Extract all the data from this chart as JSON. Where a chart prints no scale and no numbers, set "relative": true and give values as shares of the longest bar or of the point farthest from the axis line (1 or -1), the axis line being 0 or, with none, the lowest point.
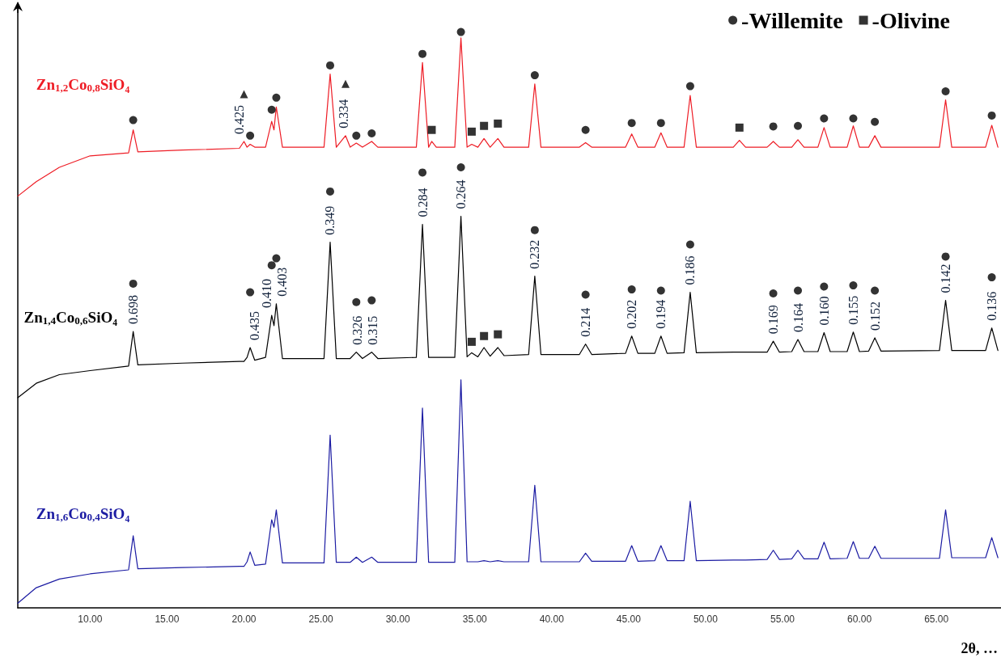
{
  "chart_data": {
    "type": "line",
    "relative": true,
    "marker": "none",
    "legend": "top right",
    "xlabel": "2θ, …",
    "xlim": [
      5.3,
      69.2
    ],
    "xticks": [
      {
        "value": 10,
        "label": "10.00"
      },
      {
        "value": 15,
        "label": "15.00"
      },
      {
        "value": 20,
        "label": "20.00"
      },
      {
        "value": 25,
        "label": "25.00"
      },
      {
        "value": 30,
        "label": "30.00"
      },
      {
        "value": 35,
        "label": "35.00"
      },
      {
        "value": 40,
        "label": "40.00"
      },
      {
        "value": 45,
        "label": "45.00"
      },
      {
        "value": 50,
        "label": "50.00"
      },
      {
        "value": 55,
        "label": "55.00"
      },
      {
        "value": 60,
        "label": "60.00"
      },
      {
        "value": 65,
        "label": "65.00"
      }
    ],
    "x": [
      5.3,
      6.5,
      8,
      10,
      12.5,
      12.8,
      13.1,
      16,
      19.7,
      20.0,
      20.2,
      20.4,
      20.7,
      21.4,
      21.8,
      21.95,
      22.1,
      22.5,
      25.2,
      25.6,
      26.0,
      26.6,
      26.9,
      27.3,
      27.7,
      28.3,
      28.7,
      31.2,
      31.6,
      32.0,
      32.2,
      32.5,
      33.7,
      34.1,
      34.5,
      34.8,
      35.2,
      35.6,
      36.0,
      36.5,
      36.9,
      38.5,
      38.9,
      39.3,
      41.8,
      42.2,
      42.6,
      44.8,
      45.2,
      45.6,
      46.7,
      47.1,
      47.5,
      48.6,
      49.0,
      49.4,
      51.8,
      52.2,
      52.6,
      54.0,
      54.4,
      54.8,
      55.6,
      56.0,
      56.4,
      57.3,
      57.7,
      58.1,
      59.2,
      59.6,
      60.0,
      60.6,
      61.0,
      61.4,
      65.2,
      65.6,
      66.0,
      68.2,
      68.6,
      69.0
    ],
    "series": [
      {
        "name": "Zn$_{1,2}$Co$_{0,8}$SiO₄",
        "color": "#ee1c25",
        "values": [
          0.715,
          0.74,
          0.765,
          0.785,
          0.79,
          0.83,
          0.792,
          0.795,
          0.798,
          0.81,
          0.8,
          0.805,
          0.8,
          0.8,
          0.845,
          0.83,
          0.87,
          0.8,
          0.8,
          0.927,
          0.8,
          0.82,
          0.8,
          0.807,
          0.8,
          0.81,
          0.8,
          0.8,
          0.947,
          0.8,
          0.81,
          0.8,
          0.8,
          0.99,
          0.8,
          0.805,
          0.8,
          0.815,
          0.8,
          0.815,
          0.8,
          0.8,
          0.91,
          0.8,
          0.8,
          0.808,
          0.8,
          0.8,
          0.823,
          0.8,
          0.8,
          0.825,
          0.8,
          0.8,
          0.89,
          0.8,
          0.8,
          0.812,
          0.8,
          0.8,
          0.81,
          0.8,
          0.8,
          0.813,
          0.8,
          0.8,
          0.834,
          0.8,
          0.8,
          0.837,
          0.8,
          0.8,
          0.82,
          0.8,
          0.8,
          0.882,
          0.8,
          0.8,
          0.838,
          0.8
        ]
      },
      {
        "name": "Zn$_{1,4}$Co$_{0,6}$SiO₄",
        "color": "#000000",
        "values": [
          0.365,
          0.39,
          0.405,
          0.412,
          0.42,
          0.48,
          0.422,
          0.425,
          0.428,
          0.428,
          0.435,
          0.452,
          0.43,
          0.435,
          0.508,
          0.49,
          0.528,
          0.433,
          0.433,
          0.635,
          0.433,
          0.433,
          0.433,
          0.444,
          0.433,
          0.444,
          0.433,
          0.435,
          0.666,
          0.435,
          0.435,
          0.435,
          0.435,
          0.68,
          0.436,
          0.443,
          0.436,
          0.452,
          0.437,
          0.452,
          0.438,
          0.44,
          0.576,
          0.44,
          0.44,
          0.458,
          0.44,
          0.442,
          0.472,
          0.442,
          0.442,
          0.472,
          0.442,
          0.443,
          0.548,
          0.443,
          0.444,
          0.444,
          0.444,
          0.444,
          0.463,
          0.444,
          0.445,
          0.466,
          0.445,
          0.445,
          0.478,
          0.445,
          0.445,
          0.479,
          0.445,
          0.446,
          0.469,
          0.446,
          0.447,
          0.534,
          0.447,
          0.447,
          0.486,
          0.447
        ]
      },
      {
        "name": "Zn$_{1,6}$Co$_{0,4}$SiO₄",
        "color": "#1c1ca3",
        "values": [
          0.008,
          0.035,
          0.05,
          0.059,
          0.066,
          0.125,
          0.068,
          0.07,
          0.072,
          0.072,
          0.08,
          0.097,
          0.074,
          0.076,
          0.153,
          0.14,
          0.17,
          0.078,
          0.078,
          0.3,
          0.079,
          0.079,
          0.079,
          0.088,
          0.079,
          0.088,
          0.079,
          0.079,
          0.347,
          0.079,
          0.079,
          0.079,
          0.079,
          0.396,
          0.08,
          0.08,
          0.08,
          0.082,
          0.08,
          0.082,
          0.08,
          0.08,
          0.213,
          0.08,
          0.08,
          0.095,
          0.081,
          0.081,
          0.108,
          0.081,
          0.082,
          0.108,
          0.082,
          0.082,
          0.185,
          0.082,
          0.083,
          0.083,
          0.083,
          0.084,
          0.1,
          0.084,
          0.085,
          0.1,
          0.085,
          0.085,
          0.114,
          0.085,
          0.086,
          0.115,
          0.086,
          0.086,
          0.107,
          0.086,
          0.086,
          0.17,
          0.087,
          0.087,
          0.122,
          0.087
        ]
      },
      {
        "name": "-Willemite",
        "type": "scatter",
        "marker": "circle",
        "color": "#000000",
        "x": [
          12.8,
          20.4,
          21.8,
          22.1,
          25.6,
          27.3,
          28.3,
          31.6,
          34.1,
          38.9,
          42.2,
          45.2,
          47.1,
          49.0,
          54.4,
          56.0,
          57.7,
          59.6,
          61.0,
          65.6,
          68.6,
          12.8,
          20.4,
          21.8,
          22.1,
          25.6,
          27.3,
          28.3,
          31.6,
          34.1,
          38.9,
          42.2,
          45.2,
          47.1,
          49.0,
          54.4,
          56.0,
          57.7,
          59.6,
          61.0,
          65.6,
          68.6
        ],
        "values": [
          0.847,
          0.82,
          0.865,
          0.886,
          0.942,
          0.82,
          0.824,
          0.962,
          1,
          0.925,
          0.83,
          0.842,
          0.842,
          0.906,
          0.836,
          0.837,
          0.85,
          0.85,
          0.844,
          0.897,
          0.855,
          0.563,
          0.548,
          0.595,
          0.607,
          0.723,
          0.531,
          0.534,
          0.756,
          0.765,
          0.656,
          0.544,
          0.553,
          0.551,
          0.631,
          0.546,
          0.551,
          0.558,
          0.56,
          0.551,
          0.61,
          0.574
        ]
      },
      {
        "name": "-Olivine",
        "type": "scatter",
        "marker": "square",
        "color": "#000000",
        "x": [
          32.2,
          34.8,
          35.6,
          36.5,
          52.2,
          34.8,
          35.6,
          36.5
        ],
        "values": [
          0.83,
          0.827,
          0.837,
          0.841,
          0.834,
          0.462,
          0.472,
          0.475
        ]
      },
      {
        "type": "scatter",
        "marker": "triangle",
        "color": "#000000",
        "x": [
          20.0,
          26.6
        ],
        "values": [
          0.892,
          0.91
        ]
      }
    ],
    "annotations": [
      {
        "text": "0.425",
        "x": 20.0,
        "y": 0.81
      },
      {
        "text": "0.334",
        "x": 26.6,
        "y": 0.82
      },
      {
        "text": "0.698",
        "x": 12.8,
        "y": 0.48
      },
      {
        "text": "0.435",
        "x": 20.4,
        "y": 0.452
      },
      {
        "text": "0.410",
        "x": 21.8,
        "y": 0.508
      },
      {
        "text": "0.403",
        "x": 22.1,
        "y": 0.528
      },
      {
        "text": "0.349",
        "x": 25.6,
        "y": 0.635
      },
      {
        "text": "0.326",
        "x": 27.3,
        "y": 0.444
      },
      {
        "text": "0.315",
        "x": 28.3,
        "y": 0.444
      },
      {
        "text": "0.284",
        "x": 31.6,
        "y": 0.666
      },
      {
        "text": "0.264",
        "x": 34.1,
        "y": 0.68
      },
      {
        "text": "0.232",
        "x": 38.9,
        "y": 0.576
      },
      {
        "text": "0.214",
        "x": 42.2,
        "y": 0.458
      },
      {
        "text": "0.202",
        "x": 45.2,
        "y": 0.472
      },
      {
        "text": "0.194",
        "x": 47.1,
        "y": 0.472
      },
      {
        "text": "0.186",
        "x": 49.0,
        "y": 0.548
      },
      {
        "text": "0.169",
        "x": 54.4,
        "y": 0.463
      },
      {
        "text": "0.164",
        "x": 56.0,
        "y": 0.466
      },
      {
        "text": "0.160",
        "x": 57.7,
        "y": 0.478
      },
      {
        "text": "0.155",
        "x": 59.6,
        "y": 0.479
      },
      {
        "text": "0.152",
        "x": 61.0,
        "y": 0.469
      },
      {
        "text": "0.142",
        "x": 65.6,
        "y": 0.534
      },
      {
        "text": "0.136",
        "x": 68.6,
        "y": 0.486
      }
    ]
  }
}
